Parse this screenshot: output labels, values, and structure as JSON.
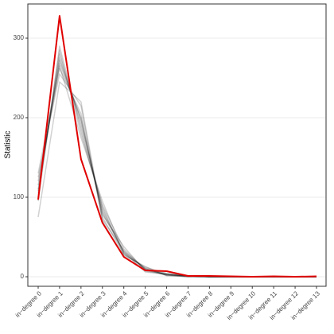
{
  "chart_data": {
    "type": "line",
    "y_label": "Statistic",
    "categories": [
      "in−degree 0",
      "in−degree 1",
      "in−degree 2",
      "in−degree 3",
      "in−degree 4",
      "in−degree 5",
      "in−degree 6",
      "in−degree 7",
      "in−degree 8",
      "in−degree 9",
      "in−degree 10",
      "in−degree 11",
      "in−degree 12",
      "in−degree 13"
    ],
    "ylim": [
      -12,
      343
    ],
    "yticks": [
      0,
      100,
      200,
      300
    ],
    "grid": true,
    "series": [
      {
        "color": "rgba(0,0,0,0.18)",
        "values": [
          110,
          275,
          195,
          82,
          32,
          10,
          3,
          1,
          0,
          0,
          0,
          0,
          0,
          0
        ]
      },
      {
        "color": "rgba(0,0,0,0.18)",
        "values": [
          120,
          262,
          205,
          75,
          28,
          12,
          4,
          1,
          0,
          0,
          0,
          0,
          0,
          0
        ]
      },
      {
        "color": "rgba(0,0,0,0.18)",
        "values": [
          100,
          285,
          180,
          90,
          35,
          9,
          2,
          0,
          1,
          0,
          0,
          0,
          0,
          0
        ]
      },
      {
        "color": "rgba(0,0,0,0.18)",
        "values": [
          125,
          255,
          215,
          70,
          25,
          8,
          3,
          1,
          0,
          0,
          0,
          0,
          0,
          0
        ]
      },
      {
        "color": "rgba(0,0,0,0.18)",
        "values": [
          95,
          290,
          185,
          85,
          30,
          11,
          2,
          1,
          0,
          0,
          0,
          0,
          0,
          0
        ]
      },
      {
        "color": "rgba(0,0,0,0.18)",
        "values": [
          115,
          268,
          200,
          78,
          38,
          7,
          3,
          0,
          0,
          0,
          0,
          0,
          0,
          0
        ]
      },
      {
        "color": "rgba(0,0,0,0.18)",
        "values": [
          105,
          280,
          190,
          88,
          27,
          13,
          1,
          1,
          0,
          0,
          0,
          0,
          0,
          0
        ]
      },
      {
        "color": "rgba(0,0,0,0.18)",
        "values": [
          75,
          245,
          220,
          72,
          33,
          9,
          4,
          1,
          0,
          0,
          0,
          0,
          0,
          0
        ]
      },
      {
        "color": "rgba(0,0,0,0.18)",
        "values": [
          130,
          265,
          175,
          95,
          29,
          10,
          2,
          0,
          0,
          0,
          0,
          0,
          0,
          0
        ]
      },
      {
        "color": "rgba(0,0,0,0.18)",
        "values": [
          108,
          272,
          198,
          80,
          31,
          6,
          3,
          1,
          0,
          0,
          0,
          0,
          0,
          0
        ]
      },
      {
        "color": "#e00000",
        "values": [
          97,
          328,
          148,
          68,
          25,
          8,
          7,
          1,
          1,
          0.5,
          0,
          0.5,
          0,
          0.5
        ]
      }
    ]
  }
}
